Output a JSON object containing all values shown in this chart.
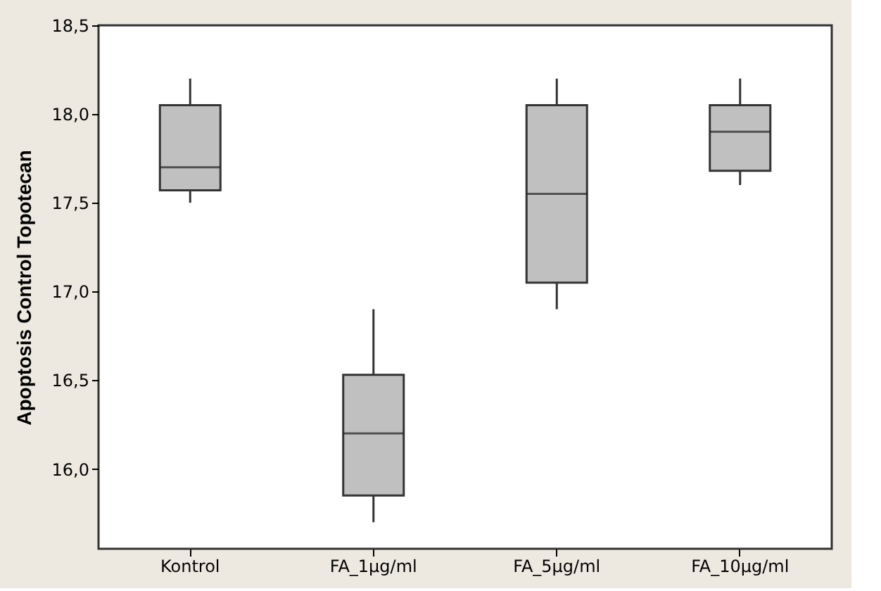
{
  "chart_data": {
    "type": "box",
    "ylabel": "Apoptosis Control Topotecan",
    "categories": [
      "Kontrol",
      "FA_1µg/ml",
      "FA_5µg/ml",
      "FA_10µg/ml"
    ],
    "series": [
      {
        "color": "#c0c0c0",
        "boxes": [
          {
            "low": 17.5,
            "q1": 17.57,
            "median": 17.7,
            "q3": 18.05,
            "high": 18.2
          },
          {
            "low": 15.7,
            "q1": 15.85,
            "median": 16.2,
            "q3": 16.53,
            "high": 16.9
          },
          {
            "low": 16.9,
            "q1": 17.05,
            "median": 17.55,
            "q3": 18.05,
            "high": 18.2
          },
          {
            "low": 17.6,
            "q1": 17.68,
            "median": 17.9,
            "q3": 18.05,
            "high": 18.2
          }
        ]
      }
    ],
    "ylim": [
      15.55,
      18.5
    ],
    "yticks": [
      {
        "value": 16.0,
        "label": "16,0"
      },
      {
        "value": 16.5,
        "label": "16,5"
      },
      {
        "value": 17.0,
        "label": "17,0"
      },
      {
        "value": 17.5,
        "label": "17,5"
      },
      {
        "value": 18.0,
        "label": "18,0"
      },
      {
        "value": 18.5,
        "label": "18,5"
      }
    ],
    "grid": false
  }
}
